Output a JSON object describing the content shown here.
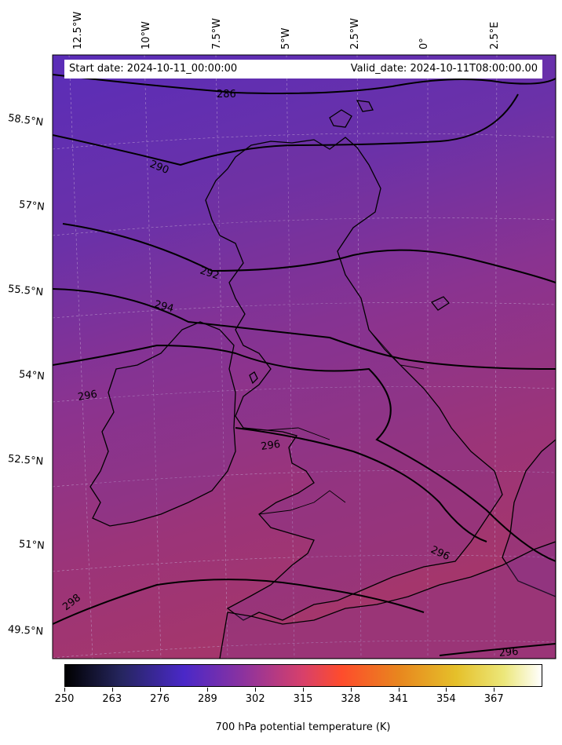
{
  "header": {
    "start_date": "Start date: 2024-10-11_00:00:00",
    "valid_date": "Valid_date: 2024-10-11T08:00:00.00"
  },
  "longitude_labels": [
    "12.5°W",
    "10°W",
    "7.5°W",
    "5°W",
    "2.5°W",
    "0°",
    "2.5°E"
  ],
  "latitude_labels": [
    "58.5°N",
    "57°N",
    "55.5°N",
    "54°N",
    "52.5°N",
    "51°N",
    "49.5°N"
  ],
  "contour_labels": [
    "286",
    "290",
    "292",
    "294",
    "296",
    "296",
    "296",
    "298",
    "296"
  ],
  "colorbar": {
    "title": "700 hPa potential temperature (K)",
    "ticks": [
      "250",
      "263",
      "276",
      "289",
      "302",
      "315",
      "328",
      "341",
      "354",
      "367"
    ],
    "range": [
      250,
      380
    ],
    "colormap": "CMRmap"
  },
  "colors": {
    "field_north": "#5b2fb4",
    "field_mid": "#7a3398",
    "field_south": "#a2356f",
    "coastline": "#000000",
    "contour": "#000000"
  }
}
